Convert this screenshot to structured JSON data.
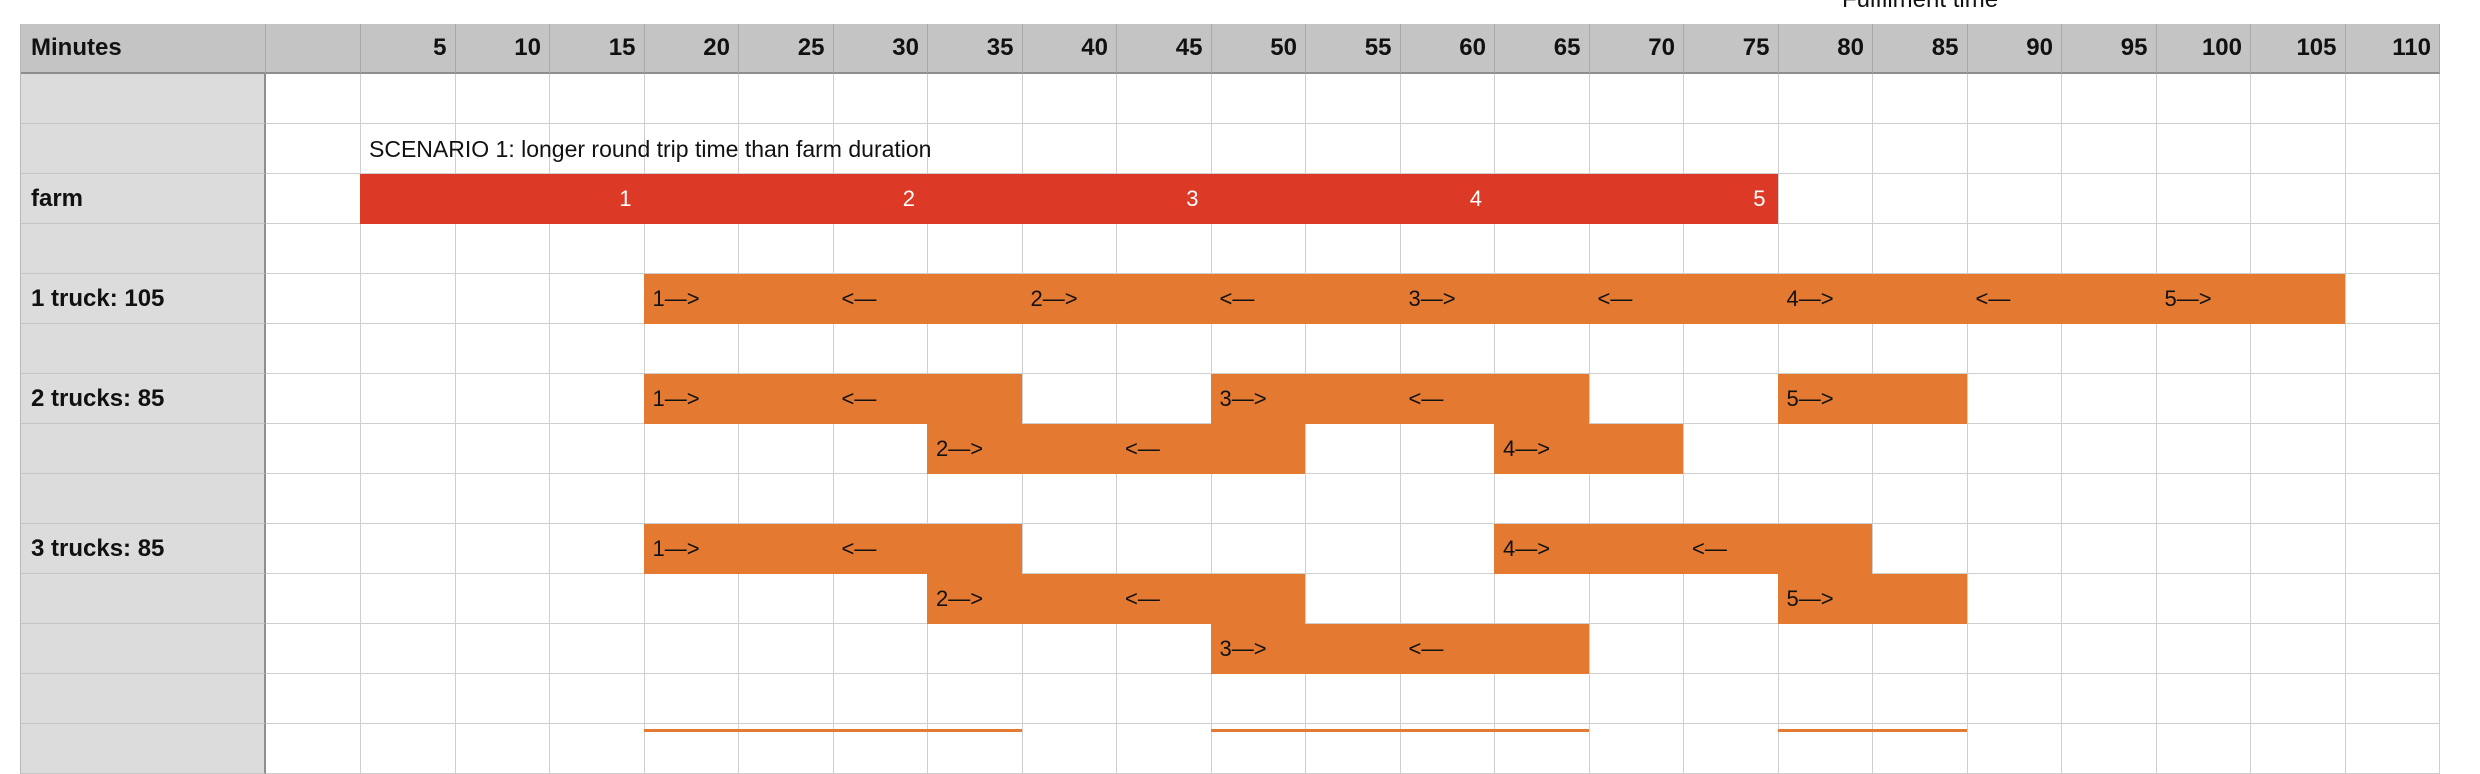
{
  "partial_title": "Fulfilment time",
  "header": {
    "row_label": "Minutes",
    "minutes": [
      "5",
      "10",
      "15",
      "20",
      "25",
      "30",
      "35",
      "40",
      "45",
      "50",
      "55",
      "60",
      "65",
      "70",
      "75",
      "80",
      "85",
      "90",
      "95",
      "100",
      "105",
      "110"
    ]
  },
  "scenario_text": "SCENARIO 1: longer round trip time than farm duration",
  "rows": {
    "farm": "farm",
    "t1": "1 truck: 105",
    "t2": "2 trucks: 85",
    "t3": "3 trucks: 85"
  },
  "farm_bars": [
    "1",
    "2",
    "3",
    "4",
    "5"
  ],
  "truck1": [
    "1—>",
    "<—",
    "2—>",
    "<—",
    "3—>",
    "<—",
    "4—>",
    "<—",
    "5—>"
  ],
  "truck2a": [
    "1—>",
    "<—",
    "3—>",
    "<—",
    "5—>"
  ],
  "truck2b": [
    "2—>",
    "<—",
    "4—>"
  ],
  "truck3a": [
    "1—>",
    "<—",
    "4—>",
    "<—"
  ],
  "truck3b": [
    "2—>",
    "<—",
    "5—>"
  ],
  "truck3c": [
    "3—>",
    "<—"
  ],
  "colors": {
    "farm": "#dc3a26",
    "truck": "#e47a32",
    "header": "#c4c4c4",
    "label_col": "#dcdcdc"
  }
}
